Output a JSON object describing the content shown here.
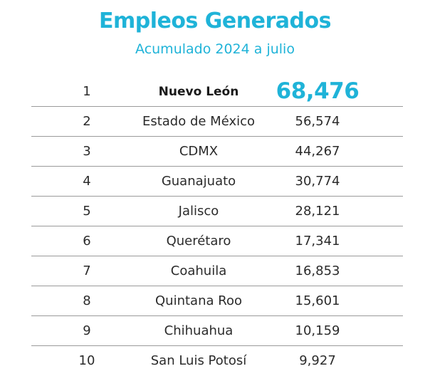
{
  "colors": {
    "accent": "#1fb3d8",
    "text": "#2b2b2b",
    "divider": "#9a9a9a"
  },
  "chart_data": {
    "type": "table",
    "title": "Empleos Generados",
    "subtitle": "Acumulado 2024 a julio",
    "columns": [
      "",
      "",
      ""
    ],
    "rows": [
      {
        "rank": "1",
        "state": "Nuevo León",
        "value": "68,476"
      },
      {
        "rank": "2",
        "state": "Estado de México",
        "value": "56,574"
      },
      {
        "rank": "3",
        "state": "CDMX",
        "value": "44,267"
      },
      {
        "rank": "4",
        "state": "Guanajuato",
        "value": "30,774"
      },
      {
        "rank": "5",
        "state": "Jalisco",
        "value": "28,121"
      },
      {
        "rank": "6",
        "state": "Querétaro",
        "value": "17,341"
      },
      {
        "rank": "7",
        "state": "Coahuila",
        "value": "16,853"
      },
      {
        "rank": "8",
        "state": "Quintana Roo",
        "value": "15,601"
      },
      {
        "rank": "9",
        "state": "Chihuahua",
        "value": "10,159"
      },
      {
        "rank": "10",
        "state": "San Luis Potosí",
        "value": "9,927"
      }
    ]
  }
}
